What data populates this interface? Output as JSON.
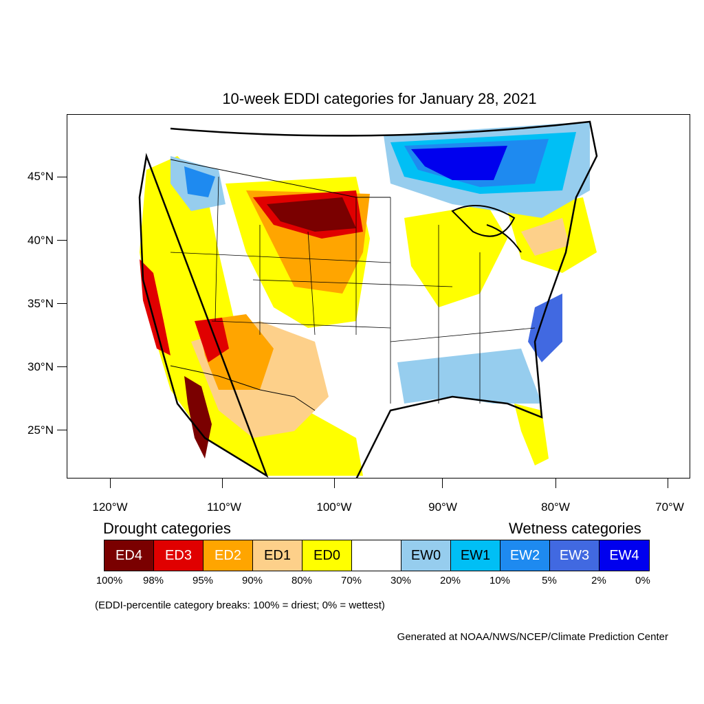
{
  "title": "10-week EDDI categories for January 28, 2021",
  "axes": {
    "lat_labels": [
      "45°N",
      "40°N",
      "35°N",
      "30°N",
      "25°N"
    ],
    "lon_labels": [
      "120°W",
      "110°W",
      "100°W",
      "90°W",
      "80°W",
      "70°W"
    ]
  },
  "legend": {
    "drought_heading": "Drought categories",
    "wetness_heading": "Wetness categories",
    "categories": [
      {
        "label": "ED4",
        "color": "#7a0000",
        "text_color": "#ffffff"
      },
      {
        "label": "ED3",
        "color": "#e00000",
        "text_color": "#ffffff"
      },
      {
        "label": "ED2",
        "color": "#ffa500",
        "text_color": "#ffffff"
      },
      {
        "label": "ED1",
        "color": "#fdd08a",
        "text_color": "#000000"
      },
      {
        "label": "ED0",
        "color": "#ffff00",
        "text_color": "#000000"
      },
      {
        "label": "",
        "color": "#ffffff",
        "text_color": "#000000"
      },
      {
        "label": "EW0",
        "color": "#96cdee",
        "text_color": "#000000"
      },
      {
        "label": "EW1",
        "color": "#00bff5",
        "text_color": "#000000"
      },
      {
        "label": "EW2",
        "color": "#1e8af0",
        "text_color": "#ffffff"
      },
      {
        "label": "EW3",
        "color": "#4169e1",
        "text_color": "#ffffff"
      },
      {
        "label": "EW4",
        "color": "#0000ee",
        "text_color": "#ffffff"
      }
    ],
    "breaks": [
      "100%",
      "98%",
      "95%",
      "90%",
      "80%",
      "70%",
      "30%",
      "20%",
      "10%",
      "5%",
      "2%",
      "0%"
    ]
  },
  "note": "(EDDI-percentile category breaks: 100% = driest; 0% = wettest)",
  "credit": "Generated at NOAA/NWS/NCEP/Climate Prediction Center"
}
